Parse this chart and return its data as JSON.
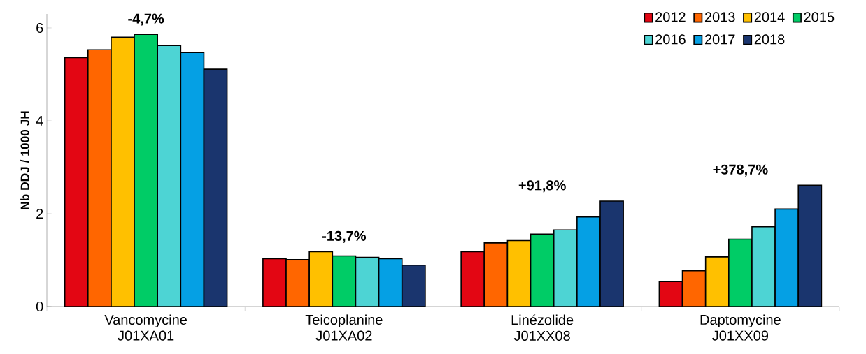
{
  "chart_data": {
    "type": "bar",
    "ylabel": "Nb DDJ / 1000 JH",
    "categories": [
      "Vancomycine J01XA01",
      "Teicoplanine J01XA02",
      "Linézolide J01XX08",
      "Daptomycine J01XX09"
    ],
    "series": [
      {
        "name": "2012",
        "color": "#e30613",
        "values": [
          5.36,
          1.03,
          1.18,
          0.54
        ]
      },
      {
        "name": "2013",
        "color": "#ff6600",
        "values": [
          5.53,
          1.01,
          1.37,
          0.77
        ]
      },
      {
        "name": "2014",
        "color": "#ffc000",
        "values": [
          5.8,
          1.18,
          1.42,
          1.07
        ]
      },
      {
        "name": "2015",
        "color": "#00cc66",
        "values": [
          5.86,
          1.09,
          1.56,
          1.45
        ]
      },
      {
        "name": "2016",
        "color": "#4dd4d4",
        "values": [
          5.62,
          1.06,
          1.65,
          1.72
        ]
      },
      {
        "name": "2017",
        "color": "#05a0e4",
        "values": [
          5.47,
          1.03,
          1.93,
          2.1
        ]
      },
      {
        "name": "2018",
        "color": "#1a356e",
        "values": [
          5.11,
          0.89,
          2.27,
          2.61
        ]
      }
    ],
    "annotations": [
      "-4,7%",
      "-13,7%",
      "+91,8%",
      "+378,7%"
    ],
    "ylim": [
      0,
      6.3
    ],
    "yticks": [
      0,
      2,
      4,
      6
    ],
    "grid": false,
    "legend": "top right"
  }
}
